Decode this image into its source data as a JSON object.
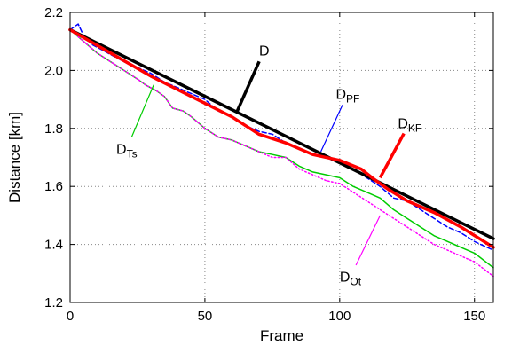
{
  "chart_data": {
    "type": "line",
    "xlabel": "Frame",
    "ylabel": "Distance [km]",
    "xlim": [
      0,
      157
    ],
    "ylim": [
      1.2,
      2.2
    ],
    "xticks": [
      0,
      50,
      100,
      150
    ],
    "yticks": [
      1.2,
      1.4,
      1.6,
      1.8,
      2.0,
      2.2
    ],
    "xtick_labels": [
      "0",
      "50",
      "100",
      "150"
    ],
    "ytick_labels": [
      "1.2",
      "1.4",
      "1.6",
      "1.8",
      "2.0",
      "2.2"
    ],
    "grid": true,
    "series": [
      {
        "name": "D",
        "color": "#000000",
        "style": "solid-thick",
        "x": [
          0,
          157
        ],
        "y": [
          2.14,
          1.42
        ]
      },
      {
        "name": "D_PF",
        "color": "#0000ff",
        "style": "dashed",
        "x": [
          0,
          3,
          5,
          8,
          12,
          16,
          20,
          25,
          30,
          35,
          40,
          45,
          50,
          55,
          60,
          65,
          70,
          75,
          80,
          85,
          90,
          95,
          100,
          105,
          110,
          115,
          120,
          125,
          130,
          135,
          140,
          145,
          150,
          157
        ],
        "y": [
          2.14,
          2.16,
          2.12,
          2.09,
          2.07,
          2.05,
          2.03,
          2.01,
          1.99,
          1.96,
          1.94,
          1.92,
          1.9,
          1.86,
          1.84,
          1.81,
          1.79,
          1.78,
          1.75,
          1.73,
          1.71,
          1.7,
          1.68,
          1.66,
          1.63,
          1.6,
          1.56,
          1.55,
          1.52,
          1.49,
          1.46,
          1.44,
          1.41,
          1.38
        ]
      },
      {
        "name": "D_KF",
        "color": "#ff0000",
        "style": "solid-thick",
        "x": [
          0,
          15,
          30,
          45,
          60,
          70,
          80,
          90,
          100,
          108,
          112,
          118,
          125,
          135,
          145,
          157
        ],
        "y": [
          2.14,
          2.06,
          1.98,
          1.91,
          1.84,
          1.78,
          1.75,
          1.71,
          1.69,
          1.66,
          1.63,
          1.59,
          1.55,
          1.51,
          1.46,
          1.39
        ]
      },
      {
        "name": "D_Ts",
        "color": "#00cc00",
        "style": "solid",
        "x": [
          0,
          5,
          10,
          15,
          20,
          25,
          28,
          32,
          35,
          38,
          42,
          45,
          50,
          55,
          60,
          65,
          70,
          75,
          80,
          85,
          90,
          95,
          100,
          105,
          110,
          115,
          120,
          125,
          130,
          135,
          140,
          145,
          150,
          157
        ],
        "y": [
          2.14,
          2.1,
          2.06,
          2.03,
          2.0,
          1.97,
          1.95,
          1.93,
          1.91,
          1.87,
          1.86,
          1.84,
          1.8,
          1.77,
          1.76,
          1.74,
          1.72,
          1.71,
          1.7,
          1.67,
          1.65,
          1.64,
          1.63,
          1.6,
          1.58,
          1.56,
          1.52,
          1.49,
          1.46,
          1.43,
          1.41,
          1.39,
          1.37,
          1.32
        ]
      },
      {
        "name": "D_Ot",
        "color": "#ff00ff",
        "style": "dotted",
        "x": [
          0,
          5,
          10,
          15,
          20,
          25,
          28,
          32,
          35,
          38,
          42,
          45,
          50,
          55,
          60,
          65,
          70,
          75,
          80,
          85,
          90,
          95,
          100,
          105,
          110,
          115,
          120,
          125,
          130,
          135,
          140,
          145,
          150,
          157
        ],
        "y": [
          2.14,
          2.1,
          2.06,
          2.03,
          2.0,
          1.97,
          1.95,
          1.93,
          1.91,
          1.87,
          1.86,
          1.84,
          1.8,
          1.77,
          1.76,
          1.74,
          1.72,
          1.7,
          1.7,
          1.66,
          1.64,
          1.62,
          1.61,
          1.58,
          1.55,
          1.52,
          1.49,
          1.46,
          1.43,
          1.4,
          1.38,
          1.36,
          1.34,
          1.29
        ]
      }
    ],
    "annotations": [
      {
        "main": "D",
        "sub": "",
        "color": "#000000",
        "label_x": 72,
        "label_y": 2.07,
        "arrow_x": 62,
        "arrow_y": 1.86
      },
      {
        "main": "D",
        "sub": "PF",
        "color": "#0000ff",
        "label_x": 103,
        "label_y": 1.92,
        "arrow_x": 93,
        "arrow_y": 1.72
      },
      {
        "main": "D",
        "sub": "KF",
        "color": "#ff0000",
        "label_x": 126,
        "label_y": 1.82,
        "arrow_x": 115,
        "arrow_y": 1.63
      },
      {
        "main": "D",
        "sub": "Ts",
        "color": "#00cc00",
        "label_x": 21,
        "label_y": 1.73,
        "arrow_x": 31,
        "arrow_y": 1.95
      },
      {
        "main": "D",
        "sub": "Ot",
        "color": "#ff00ff",
        "label_x": 104,
        "label_y": 1.29,
        "arrow_x": 115,
        "arrow_y": 1.5
      }
    ]
  }
}
